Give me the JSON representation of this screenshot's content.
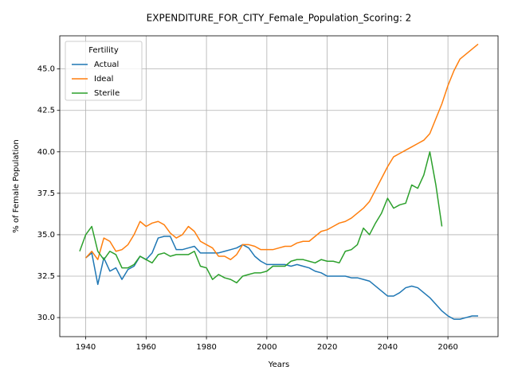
{
  "chart_data": {
    "type": "line",
    "title": "EXPENDITURE_FOR_CITY_Female_Population_Scoring: 2",
    "x_label": "Years",
    "y_label": "% of Female Population",
    "legend_title": "Fertility",
    "legend": "upper left",
    "grid": true,
    "x": [
      1938,
      1940,
      1942,
      1944,
      1946,
      1948,
      1950,
      1952,
      1954,
      1956,
      1958,
      1960,
      1962,
      1964,
      1966,
      1968,
      1970,
      1972,
      1974,
      1976,
      1978,
      1980,
      1982,
      1984,
      1986,
      1988,
      1990,
      1992,
      1994,
      1996,
      1998,
      2000,
      2002,
      2004,
      2006,
      2008,
      2010,
      2012,
      2014,
      2016,
      2018,
      2020,
      2022,
      2024,
      2026,
      2028,
      2030,
      2032,
      2034,
      2036,
      2038,
      2040,
      2042,
      2044,
      2046,
      2048,
      2050,
      2052,
      2054,
      2056,
      2058,
      2060,
      2062,
      2064,
      2066,
      2068,
      2070
    ],
    "xlim": [
      1931.4,
      2076.6
    ],
    "xticks": [
      1940,
      1960,
      1980,
      2000,
      2020,
      2040,
      2060
    ],
    "ylim": [
      28.85,
      47.0
    ],
    "yticks": [
      {
        "value": 30,
        "label": "30.0"
      },
      {
        "value": 32.5,
        "label": "32.5"
      },
      {
        "value": 35,
        "label": "35.0"
      },
      {
        "value": 37.5,
        "label": "37.5"
      },
      {
        "value": 40,
        "label": "40.0"
      },
      {
        "value": 42.5,
        "label": "42.5"
      },
      {
        "value": 45,
        "label": "45.0"
      }
    ],
    "series": [
      {
        "name": "Actual",
        "color": "#1f77b4",
        "values": [
          null,
          33.6,
          33.9,
          32.0,
          33.6,
          32.8,
          33.0,
          32.3,
          32.9,
          33.1,
          33.7,
          33.5,
          33.9,
          34.8,
          34.9,
          34.9,
          34.1,
          34.1,
          34.2,
          34.3,
          33.9,
          33.9,
          33.9,
          33.9,
          34.0,
          34.1,
          34.2,
          34.4,
          34.2,
          33.7,
          33.4,
          33.2,
          33.2,
          33.2,
          33.2,
          33.1,
          33.2,
          33.1,
          33.0,
          32.8,
          32.7,
          32.5,
          32.5,
          32.5,
          32.5,
          32.4,
          32.4,
          32.3,
          32.2,
          31.9,
          31.6,
          31.3,
          31.3,
          31.5,
          31.8,
          31.9,
          31.8,
          31.5,
          31.2,
          30.8,
          30.4,
          30.1,
          29.9,
          29.9,
          30.0,
          30.1,
          30.1
        ]
      },
      {
        "name": "Ideal",
        "color": "#ff7f0e",
        "values": [
          null,
          33.6,
          34.0,
          33.5,
          34.8,
          34.6,
          34.0,
          34.1,
          34.4,
          35.0,
          35.8,
          35.5,
          35.7,
          35.8,
          35.6,
          35.1,
          34.8,
          35.0,
          35.5,
          35.2,
          34.6,
          34.4,
          34.2,
          33.7,
          33.7,
          33.5,
          33.8,
          34.4,
          34.4,
          34.3,
          34.1,
          34.1,
          34.1,
          34.2,
          34.3,
          34.3,
          34.5,
          34.6,
          34.6,
          34.9,
          35.2,
          35.3,
          35.5,
          35.7,
          35.8,
          36.0,
          36.3,
          36.6,
          37.0,
          37.7,
          38.4,
          39.1,
          39.7,
          39.9,
          40.1,
          40.3,
          40.5,
          40.7,
          41.1,
          42.0,
          42.9,
          44.0,
          44.9,
          45.6,
          45.9,
          46.2,
          46.5
        ]
      },
      {
        "name": "Sterile",
        "color": "#2ca02c",
        "values": [
          34.0,
          35.0,
          35.5,
          34.0,
          33.5,
          34.0,
          33.8,
          33.0,
          33.0,
          33.2,
          33.7,
          33.5,
          33.3,
          33.8,
          33.9,
          33.7,
          33.8,
          33.8,
          33.8,
          34.0,
          33.1,
          33.0,
          32.3,
          32.6,
          32.4,
          32.3,
          32.1,
          32.5,
          32.6,
          32.7,
          32.7,
          32.8,
          33.1,
          33.1,
          33.1,
          33.4,
          33.5,
          33.5,
          33.4,
          33.3,
          33.5,
          33.4,
          33.4,
          33.3,
          34.0,
          34.1,
          34.4,
          35.4,
          35.0,
          35.7,
          36.3,
          37.2,
          36.6,
          36.8,
          36.9,
          38.0,
          37.8,
          38.6,
          40.0,
          38.0,
          35.5,
          null,
          null,
          null,
          null,
          null,
          null
        ]
      }
    ]
  }
}
